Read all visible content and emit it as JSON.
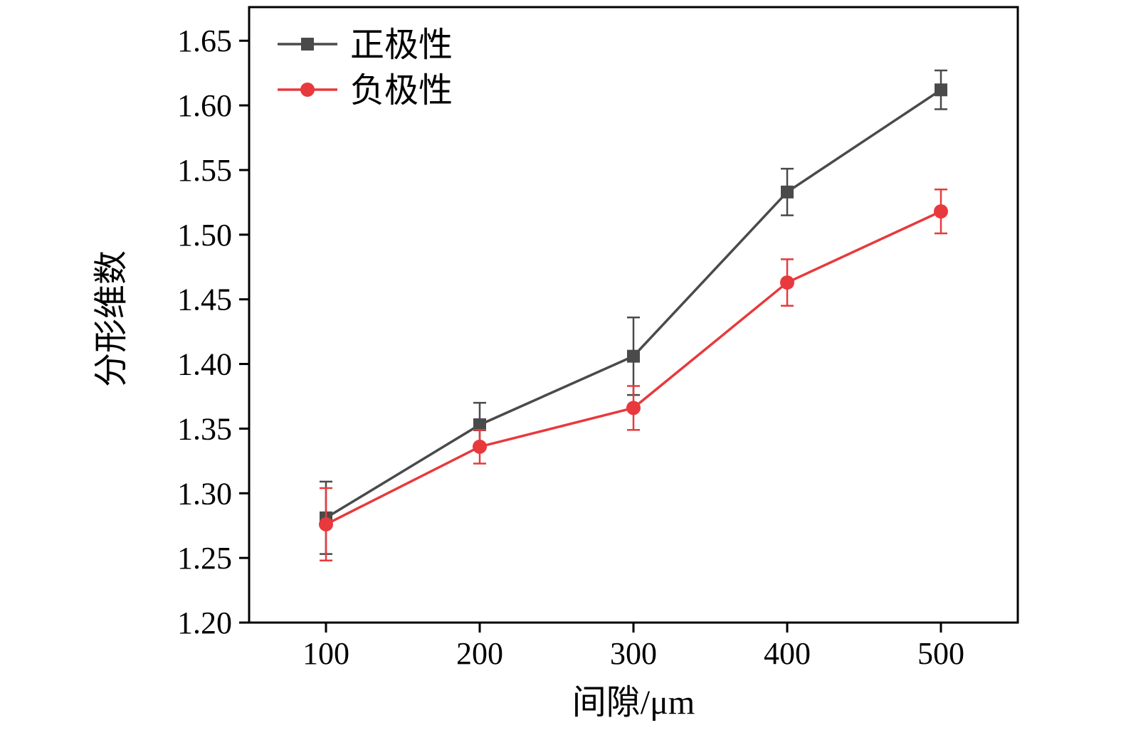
{
  "chart_data": {
    "type": "line",
    "title": "",
    "xlabel": "间隙/μm",
    "ylabel": "分形维数",
    "x": [
      100,
      200,
      300,
      400,
      500
    ],
    "x_ticks": [
      100,
      200,
      300,
      400,
      500
    ],
    "y_ticks": [
      1.2,
      1.25,
      1.3,
      1.35,
      1.4,
      1.45,
      1.5,
      1.55,
      1.6,
      1.65
    ],
    "xlim": [
      50,
      550
    ],
    "ylim": [
      1.2,
      1.676
    ],
    "grid": false,
    "legend_position": "top-left",
    "axis_color": "#000000",
    "series": [
      {
        "name": "正极性",
        "color": "#4a4a4a",
        "marker": "square",
        "values": [
          1.281,
          1.353,
          1.406,
          1.533,
          1.612
        ],
        "errors": [
          0.028,
          0.017,
          0.03,
          0.018,
          0.015
        ]
      },
      {
        "name": "负极性",
        "color": "#e8393c",
        "marker": "circle",
        "values": [
          1.276,
          1.336,
          1.366,
          1.463,
          1.518
        ],
        "errors": [
          0.028,
          0.013,
          0.017,
          0.018,
          0.017
        ]
      }
    ]
  }
}
